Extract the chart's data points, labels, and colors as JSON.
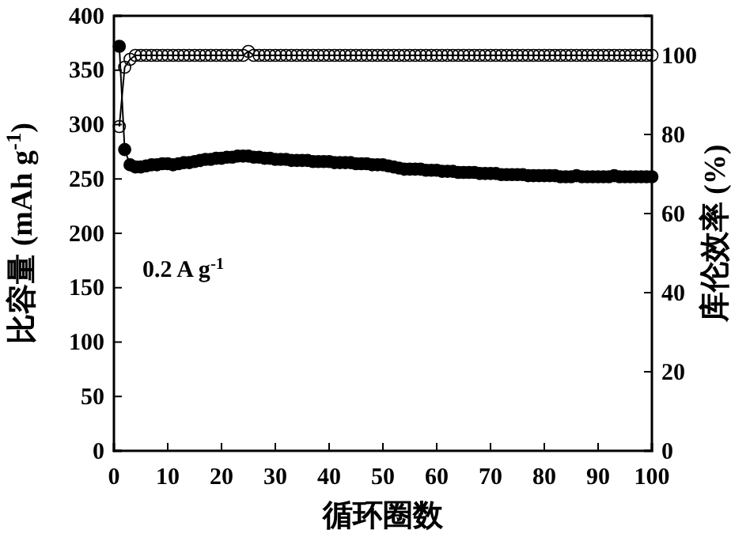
{
  "chart_data": {
    "type": "line",
    "xlabel": "循环圈数",
    "ylabel": "比容量 (mAh g$^{-1}$)",
    "y2label": "库伦效率 (%)",
    "annotations": [
      "0.2 A g$^{-1}$"
    ],
    "x": [
      1,
      2,
      3,
      4,
      5,
      6,
      7,
      8,
      9,
      10,
      11,
      12,
      13,
      14,
      15,
      16,
      17,
      18,
      19,
      20,
      21,
      22,
      23,
      24,
      25,
      26,
      27,
      28,
      29,
      30,
      31,
      32,
      33,
      34,
      35,
      36,
      37,
      38,
      39,
      40,
      41,
      42,
      43,
      44,
      45,
      46,
      47,
      48,
      49,
      50,
      51,
      52,
      53,
      54,
      55,
      56,
      57,
      58,
      59,
      60,
      61,
      62,
      63,
      64,
      65,
      66,
      67,
      68,
      69,
      70,
      71,
      72,
      73,
      74,
      75,
      76,
      77,
      78,
      79,
      80,
      81,
      82,
      83,
      84,
      85,
      86,
      87,
      88,
      89,
      90,
      91,
      92,
      93,
      94,
      95,
      96,
      97,
      98,
      99,
      100
    ],
    "xlim": [
      0,
      100
    ],
    "xticks": [
      0,
      10,
      20,
      30,
      40,
      50,
      60,
      70,
      80,
      90,
      100
    ],
    "ylim": [
      0,
      400
    ],
    "yticks": [
      0,
      50,
      100,
      150,
      200,
      250,
      300,
      350,
      400
    ],
    "y2lim": [
      0,
      110
    ],
    "y2ticks": [
      0,
      20,
      40,
      60,
      80,
      100
    ],
    "marker": "circle",
    "grid": false,
    "series": [
      {
        "color": "#000000",
        "values": [
          372,
          277,
          263,
          261,
          261,
          262,
          263,
          263,
          264,
          264,
          263,
          264,
          265,
          265,
          266,
          267,
          268,
          268,
          269,
          269,
          270,
          270,
          271,
          271,
          271,
          270,
          270,
          269,
          269,
          268,
          268,
          268,
          267,
          267,
          267,
          267,
          266,
          266,
          266,
          266,
          265,
          265,
          265,
          265,
          264,
          264,
          264,
          263,
          263,
          263,
          262,
          261,
          260,
          259,
          259,
          259,
          259,
          258,
          258,
          258,
          257,
          257,
          257,
          256,
          256,
          256,
          256,
          255,
          255,
          255,
          255,
          254,
          254,
          254,
          254,
          254,
          253,
          253,
          253,
          253,
          253,
          253,
          252,
          252,
          252,
          253,
          252,
          252,
          252,
          252,
          252,
          252,
          253,
          252,
          252,
          252,
          252,
          252,
          252,
          252
        ]
      },
      {
        "color": "#000000",
        "axis": "y2",
        "values": [
          82,
          97,
          99,
          100,
          100,
          100,
          100,
          100,
          100,
          100,
          100,
          100,
          100,
          100,
          100,
          100,
          100,
          100,
          100,
          100,
          100,
          100,
          100,
          100,
          101,
          100,
          100,
          100,
          100,
          100,
          100,
          100,
          100,
          100,
          100,
          100,
          100,
          100,
          100,
          100,
          100,
          100,
          100,
          100,
          100,
          100,
          100,
          100,
          100,
          100,
          100,
          100,
          100,
          100,
          100,
          100,
          100,
          100,
          100,
          100,
          100,
          100,
          100,
          100,
          100,
          100,
          100,
          100,
          100,
          100,
          100,
          100,
          100,
          100,
          100,
          100,
          100,
          100,
          100,
          100,
          100,
          100,
          100,
          100,
          100,
          100,
          100,
          100,
          100,
          100,
          100,
          100,
          100,
          100,
          100,
          100,
          100,
          100,
          100,
          100
        ]
      }
    ]
  }
}
